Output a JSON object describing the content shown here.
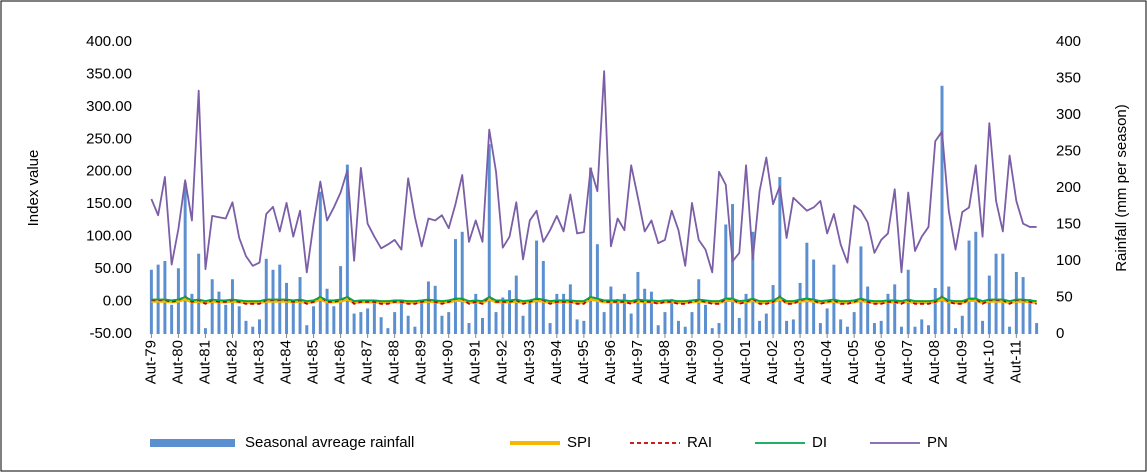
{
  "chart_data": {
    "type": "combo",
    "y_label": "Index value",
    "y2_label": "Rainfall (mm per season)",
    "categories": [
      "Aut-79",
      null,
      null,
      null,
      "Aut-80",
      null,
      null,
      null,
      "Aut-81",
      null,
      null,
      null,
      "Aut-82",
      null,
      null,
      null,
      "Aut-83",
      null,
      null,
      null,
      "Aut-84",
      null,
      null,
      null,
      "Aut-85",
      null,
      null,
      null,
      "Aut-86",
      null,
      null,
      null,
      "Aut-87",
      null,
      null,
      null,
      "Aut-88",
      null,
      null,
      null,
      "Aut-89",
      null,
      null,
      null,
      "Aut-90",
      null,
      null,
      null,
      "Aut-91",
      null,
      null,
      null,
      "Aut-92",
      null,
      null,
      null,
      "Aut-93",
      null,
      null,
      null,
      "Aut-94",
      null,
      null,
      null,
      "Aut-95",
      null,
      null,
      null,
      "Aut-96",
      null,
      null,
      null,
      "Aut-97",
      null,
      null,
      null,
      "Aut-98",
      null,
      null,
      null,
      "Aut-99",
      null,
      null,
      null,
      "Aut-00",
      null,
      null,
      null,
      "Aut-01",
      null,
      null,
      null,
      "Aut-02",
      null,
      null,
      null,
      "Aut-03",
      null,
      null,
      null,
      "Aut-04",
      null,
      null,
      null,
      "Aut-05",
      null,
      null,
      null,
      "Aut-06",
      null,
      null,
      null,
      "Aut-07",
      null,
      null,
      null,
      "Aut-08",
      null,
      null,
      null,
      "Aut-09",
      null,
      null,
      null,
      "Aut-10",
      null,
      null,
      null,
      "Aut-11",
      null,
      null,
      null
    ],
    "ylim": [
      -50,
      400
    ],
    "yticks": [
      {
        "value": -50,
        "label": "-50.00"
      },
      {
        "value": 0,
        "label": "0.00"
      },
      {
        "value": 50,
        "label": "50.00"
      },
      {
        "value": 100,
        "label": "100.00"
      },
      {
        "value": 150,
        "label": "150.00"
      },
      {
        "value": 200,
        "label": "200.00"
      },
      {
        "value": 250,
        "label": "250.00"
      },
      {
        "value": 300,
        "label": "300.00"
      },
      {
        "value": 350,
        "label": "350.00"
      },
      {
        "value": 400,
        "label": "400.00"
      }
    ],
    "y2lim": [
      0,
      400
    ],
    "y2ticks": [
      0,
      50,
      100,
      150,
      200,
      250,
      300,
      350,
      400
    ],
    "series": [
      {
        "name": "Seasonal avreage rainfall",
        "type": "bar",
        "axis": "y2",
        "color": "#5b8fd0",
        "values": [
          88,
          95,
          100,
          40,
          90,
          207,
          55,
          110,
          8,
          75,
          58,
          40,
          75,
          38,
          18,
          10,
          20,
          103,
          88,
          95,
          70,
          45,
          78,
          12,
          38,
          195,
          62,
          38,
          93,
          232,
          28,
          30,
          35,
          45,
          23,
          8,
          30,
          45,
          25,
          10,
          45,
          72,
          66,
          25,
          30,
          130,
          140,
          15,
          55,
          22,
          260,
          30,
          50,
          60,
          80,
          25,
          45,
          128,
          100,
          15,
          55,
          55,
          68,
          20,
          18,
          228,
          123,
          30,
          65,
          48,
          55,
          28,
          85,
          62,
          58,
          12,
          30,
          48,
          18,
          10,
          30,
          75,
          40,
          8,
          15,
          150,
          178,
          22,
          55,
          140,
          18,
          28,
          67,
          215,
          18,
          20,
          70,
          125,
          102,
          15,
          35,
          95,
          20,
          10,
          30,
          120,
          65,
          15,
          18,
          55,
          68,
          10,
          88,
          10,
          20,
          12,
          63,
          340,
          65,
          8,
          25,
          128,
          140,
          18,
          80,
          110,
          110,
          10,
          85,
          78,
          48,
          15
        ]
      },
      {
        "name": "SPI",
        "type": "line",
        "color": "#f5b800",
        "values": [
          1.2,
          1.2,
          1.2,
          0.2,
          1.2,
          4.5,
          0.2,
          1.2,
          -0.8,
          1.2,
          0.2,
          0.2,
          1.2,
          0.2,
          -0.8,
          -0.8,
          -0.8,
          1.2,
          1.2,
          1.2,
          1.2,
          0.2,
          1.2,
          -0.8,
          0.2,
          4.5,
          0.2,
          0.2,
          1.2,
          4.5,
          -0.8,
          0.2,
          0.2,
          0.2,
          -0.8,
          -0.8,
          0.2,
          0.2,
          -0.8,
          -0.8,
          0.2,
          1.2,
          0.2,
          -0.8,
          0.2,
          2.4,
          2.4,
          -0.8,
          0.2,
          -0.8,
          4.5,
          0.2,
          0.2,
          0.2,
          1.2,
          -0.8,
          0.2,
          2.4,
          1.2,
          -0.8,
          0.2,
          0.2,
          0.2,
          -0.8,
          -0.8,
          4.5,
          2.4,
          0.2,
          0.2,
          0.2,
          0.2,
          -0.8,
          1.2,
          0.2,
          0.2,
          -0.8,
          0.2,
          0.2,
          -0.8,
          -0.8,
          0.2,
          1.2,
          0.2,
          -0.8,
          -0.8,
          2.4,
          2.4,
          -0.8,
          0.2,
          2.4,
          -0.8,
          -0.8,
          0.2,
          4.5,
          -0.8,
          -0.8,
          1.2,
          2.4,
          1.2,
          -0.8,
          0.2,
          1.2,
          -0.8,
          -0.8,
          0.2,
          2.4,
          0.2,
          -0.8,
          -0.8,
          0.2,
          0.2,
          -0.8,
          1.2,
          -0.8,
          -0.8,
          -0.8,
          0.2,
          4.5,
          0.2,
          -0.8,
          -0.8,
          2.4,
          2.4,
          -0.8,
          1.2,
          1.2,
          1.2,
          -0.8,
          1.2,
          1.2,
          0.2,
          -0.8
        ]
      },
      {
        "name": "RAI",
        "type": "line",
        "dash": true,
        "color": "#c00000",
        "values": [
          2.1,
          2.1,
          2.1,
          -0.5,
          2.1,
          7.8,
          -0.5,
          2.1,
          -3.5,
          2.1,
          -0.5,
          -0.5,
          2.1,
          -0.5,
          -3.5,
          -3.5,
          -3.5,
          2.1,
          2.1,
          2.1,
          2.1,
          -0.5,
          2.1,
          -3.5,
          -0.5,
          7.8,
          -0.5,
          -0.5,
          2.1,
          7.8,
          -3.5,
          -0.5,
          -0.5,
          -0.5,
          -3.5,
          -3.5,
          -0.5,
          -0.5,
          -3.5,
          -3.5,
          -0.5,
          2.1,
          -0.5,
          -3.5,
          -0.5,
          4.2,
          4.2,
          -3.5,
          -0.5,
          -3.5,
          7.8,
          -0.5,
          -0.5,
          -0.5,
          2.1,
          -3.5,
          -0.5,
          4.2,
          2.1,
          -3.5,
          -0.5,
          -0.5,
          -0.5,
          -3.5,
          -3.5,
          7.8,
          4.2,
          -0.5,
          -0.5,
          -0.5,
          -0.5,
          -3.5,
          2.1,
          -0.5,
          -0.5,
          -3.5,
          -0.5,
          -0.5,
          -3.5,
          -3.5,
          -0.5,
          2.1,
          -0.5,
          -3.5,
          -3.5,
          4.2,
          4.2,
          -3.5,
          -0.5,
          4.2,
          -3.5,
          -3.5,
          -0.5,
          7.8,
          -3.5,
          -3.5,
          2.1,
          4.2,
          2.1,
          -3.5,
          -0.5,
          2.1,
          -3.5,
          -3.5,
          -0.5,
          4.2,
          -0.5,
          -3.5,
          -3.5,
          -0.5,
          -0.5,
          -3.5,
          2.1,
          -3.5,
          -3.5,
          -3.5,
          -0.5,
          7.8,
          -0.5,
          -3.5,
          -3.5,
          4.2,
          4.2,
          -3.5,
          2.1,
          2.1,
          2.1,
          -3.5,
          2.1,
          2.1,
          -0.5,
          -3.5
        ]
      },
      {
        "name": "DI",
        "type": "line",
        "color": "#00a650",
        "values": [
          3.2,
          3.2,
          3.2,
          1.8,
          3.2,
          7.1,
          1.8,
          3.2,
          0.6,
          3.2,
          1.8,
          1.8,
          3.2,
          1.8,
          0.6,
          0.6,
          0.6,
          3.2,
          3.2,
          3.2,
          3.2,
          1.8,
          3.2,
          0.6,
          1.8,
          7.1,
          1.8,
          1.8,
          3.2,
          7.1,
          0.6,
          1.8,
          1.8,
          1.8,
          0.6,
          0.6,
          1.8,
          1.8,
          0.6,
          0.6,
          1.8,
          3.2,
          1.8,
          0.6,
          1.8,
          4.6,
          4.6,
          0.6,
          1.8,
          0.6,
          7.1,
          1.8,
          1.8,
          1.8,
          3.2,
          0.6,
          1.8,
          4.6,
          3.2,
          0.6,
          1.8,
          1.8,
          1.8,
          0.6,
          0.6,
          7.1,
          4.6,
          1.8,
          1.8,
          1.8,
          1.8,
          0.6,
          3.2,
          1.8,
          1.8,
          0.6,
          1.8,
          1.8,
          0.6,
          0.6,
          1.8,
          3.2,
          1.8,
          0.6,
          0.6,
          4.6,
          4.6,
          0.6,
          1.8,
          4.6,
          0.6,
          0.6,
          1.8,
          7.1,
          0.6,
          0.6,
          3.2,
          4.6,
          3.2,
          0.6,
          1.8,
          3.2,
          0.6,
          0.6,
          1.8,
          4.6,
          1.8,
          0.6,
          0.6,
          1.8,
          1.8,
          0.6,
          3.2,
          0.6,
          0.6,
          0.6,
          1.8,
          7.1,
          1.8,
          0.6,
          0.6,
          4.6,
          4.6,
          0.6,
          3.2,
          3.2,
          3.2,
          0.6,
          3.2,
          3.2,
          1.8,
          0.6
        ]
      },
      {
        "name": "PN",
        "type": "line",
        "color": "#7b5ea7",
        "values": [
          158,
          133,
          192,
          57,
          112,
          187,
          125,
          325,
          50,
          132,
          130,
          128,
          153,
          98,
          70,
          55,
          60,
          135,
          146,
          108,
          152,
          100,
          140,
          45,
          120,
          185,
          125,
          145,
          168,
          202,
          63,
          206,
          120,
          100,
          82,
          88,
          95,
          80,
          190,
          130,
          85,
          128,
          125,
          133,
          113,
          150,
          195,
          92,
          125,
          92,
          265,
          200,
          83,
          100,
          153,
          65,
          125,
          140,
          92,
          110,
          132,
          108,
          165,
          105,
          107,
          205,
          170,
          355,
          85,
          128,
          110,
          210,
          160,
          108,
          125,
          90,
          95,
          140,
          110,
          55,
          152,
          95,
          80,
          45,
          200,
          180,
          62,
          75,
          210,
          65,
          170,
          222,
          150,
          178,
          98,
          160,
          150,
          140,
          145,
          155,
          105,
          135,
          88,
          60,
          148,
          140,
          122,
          75,
          95,
          105,
          173,
          45,
          168,
          78,
          100,
          115,
          247,
          262,
          140,
          80,
          138,
          145,
          210,
          100,
          275,
          155,
          108,
          225,
          155,
          120,
          115,
          115
        ]
      }
    ]
  }
}
